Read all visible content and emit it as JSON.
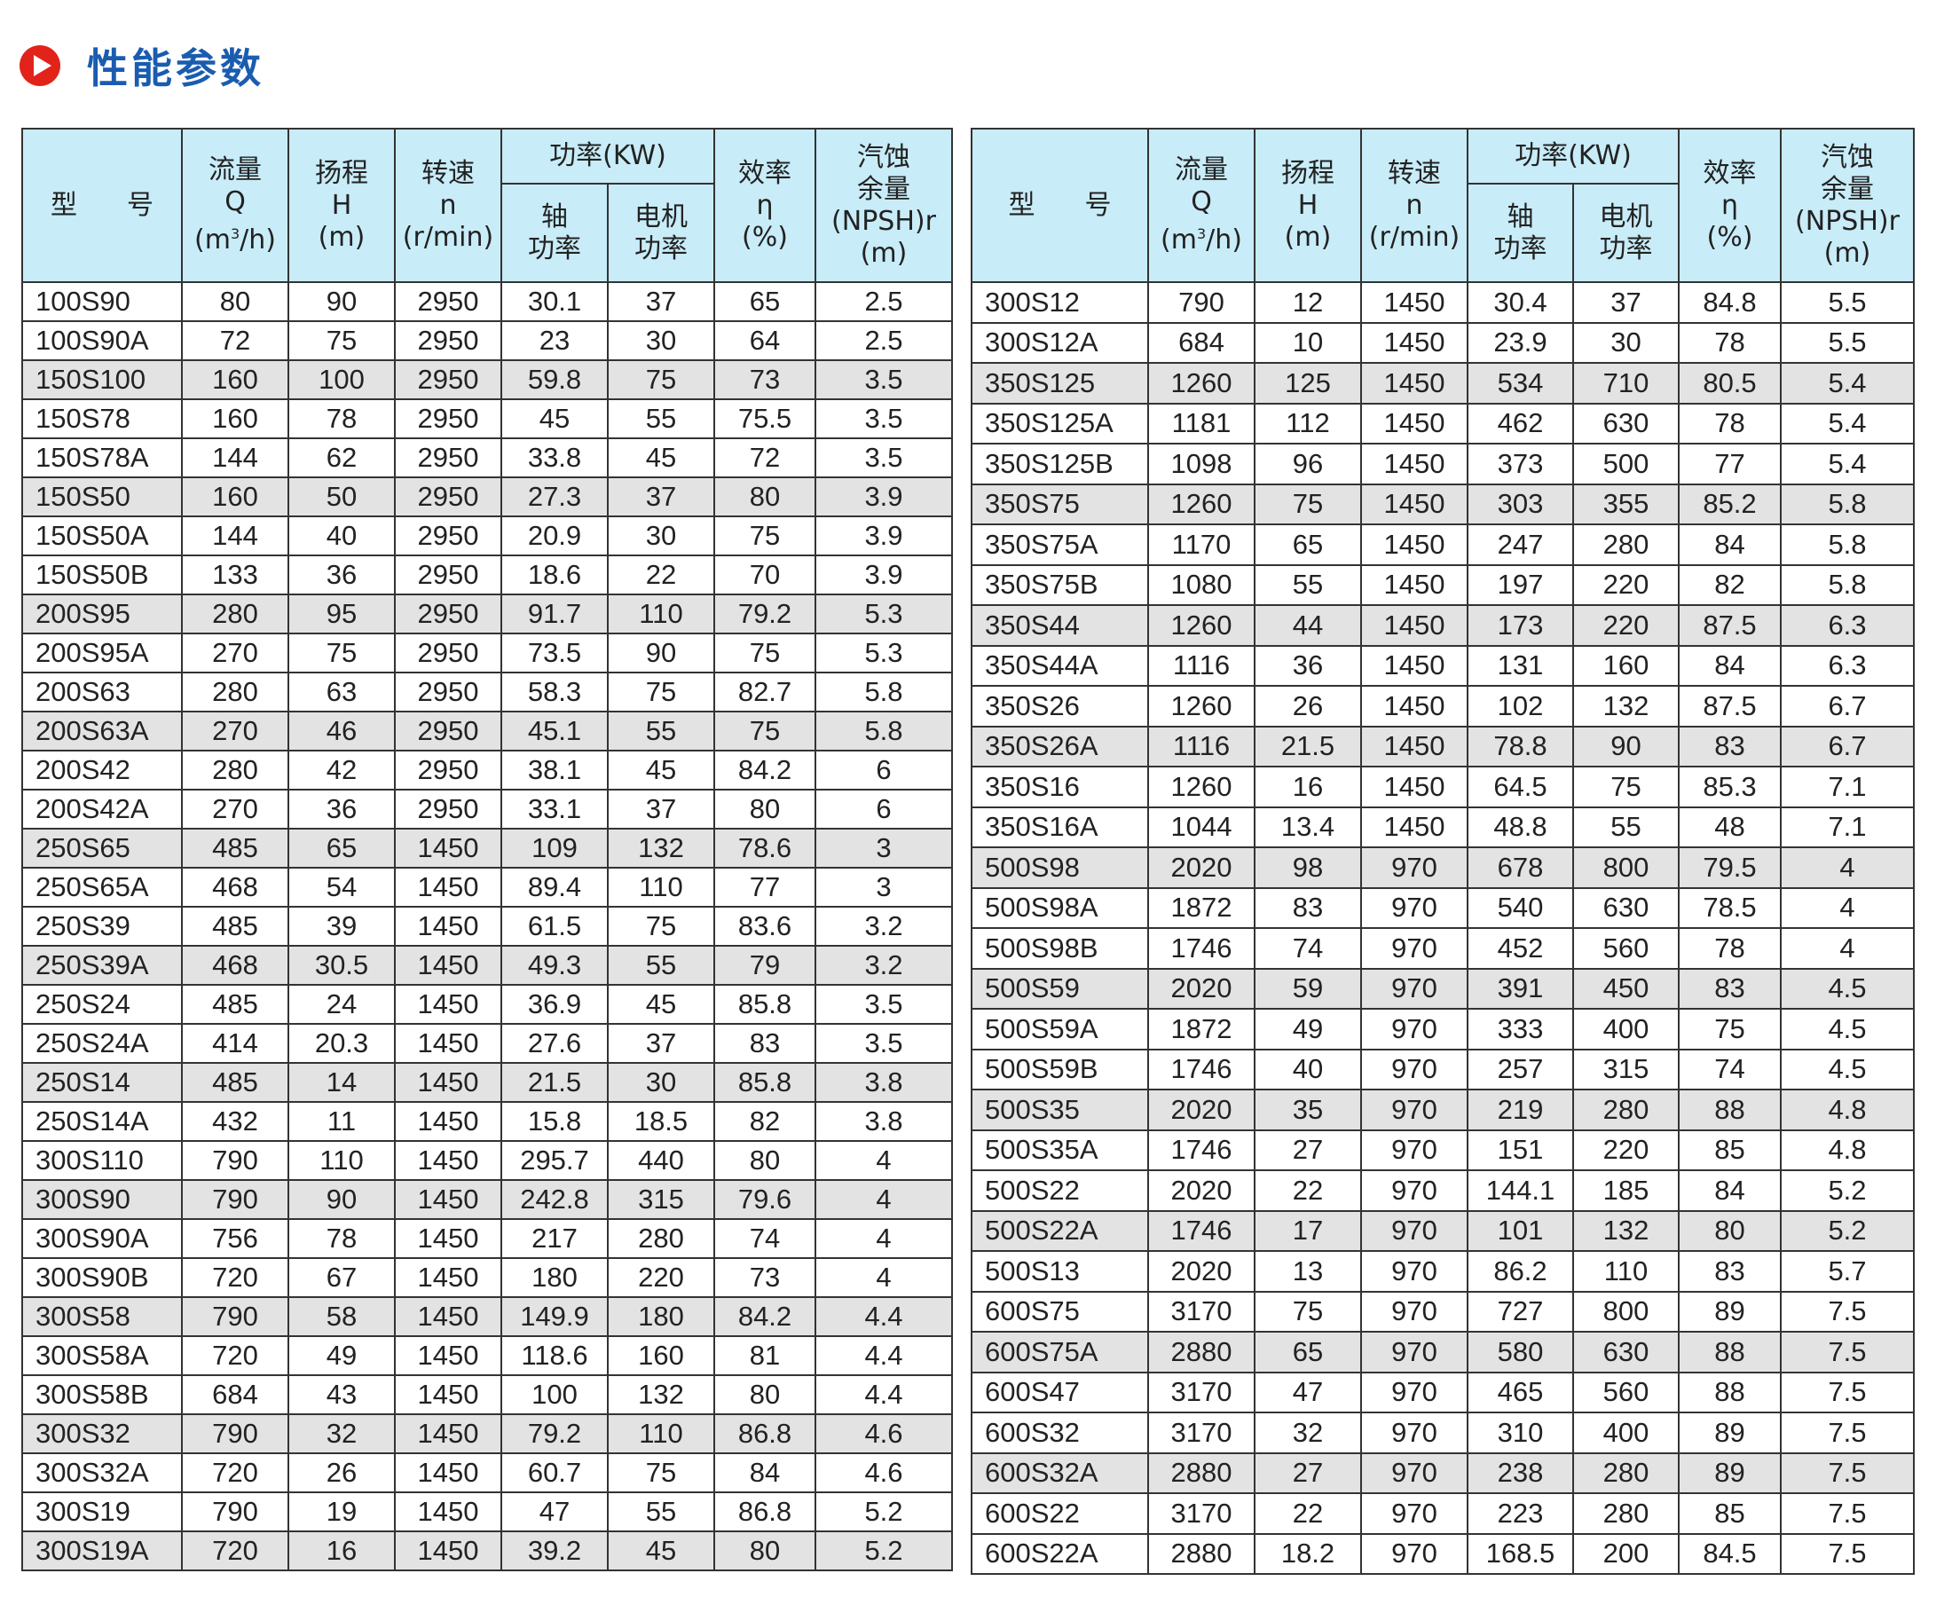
{
  "page": {
    "title": "性能参数",
    "title_icon": "play-circle-icon",
    "accent_color": "#e2231a",
    "title_color": "#1a5cb0",
    "header_bg": "#c8ecf8",
    "shade_bg": "#e3e3e3"
  },
  "headers": {
    "model_a": "型",
    "model_b": "号",
    "flow": [
      "流量",
      "Q",
      "(m",
      "3",
      "/h)"
    ],
    "head": [
      "扬程",
      "H",
      "(m)"
    ],
    "speed": [
      "转速",
      "n",
      "(r/min)"
    ],
    "power": "功率(KW)",
    "shaft_power": [
      "轴",
      "功率"
    ],
    "motor_power": [
      "电机",
      "功率"
    ],
    "efficiency": [
      "效率",
      "η",
      "(%)"
    ],
    "npsh": [
      "汽蚀",
      "余量",
      "(NPSH)r",
      "(m)"
    ]
  },
  "left_rows": [
    [
      "100S90",
      "80",
      "90",
      "2950",
      "30.1",
      "37",
      "65",
      "2.5"
    ],
    [
      "100S90A",
      "72",
      "75",
      "2950",
      "23",
      "30",
      "64",
      "2.5"
    ],
    [
      "150S100",
      "160",
      "100",
      "2950",
      "59.8",
      "75",
      "73",
      "3.5"
    ],
    [
      "150S78",
      "160",
      "78",
      "2950",
      "45",
      "55",
      "75.5",
      "3.5"
    ],
    [
      "150S78A",
      "144",
      "62",
      "2950",
      "33.8",
      "45",
      "72",
      "3.5"
    ],
    [
      "150S50",
      "160",
      "50",
      "2950",
      "27.3",
      "37",
      "80",
      "3.9"
    ],
    [
      "150S50A",
      "144",
      "40",
      "2950",
      "20.9",
      "30",
      "75",
      "3.9"
    ],
    [
      "150S50B",
      "133",
      "36",
      "2950",
      "18.6",
      "22",
      "70",
      "3.9"
    ],
    [
      "200S95",
      "280",
      "95",
      "2950",
      "91.7",
      "110",
      "79.2",
      "5.3"
    ],
    [
      "200S95A",
      "270",
      "75",
      "2950",
      "73.5",
      "90",
      "75",
      "5.3"
    ],
    [
      "200S63",
      "280",
      "63",
      "2950",
      "58.3",
      "75",
      "82.7",
      "5.8"
    ],
    [
      "200S63A",
      "270",
      "46",
      "2950",
      "45.1",
      "55",
      "75",
      "5.8"
    ],
    [
      "200S42",
      "280",
      "42",
      "2950",
      "38.1",
      "45",
      "84.2",
      "6"
    ],
    [
      "200S42A",
      "270",
      "36",
      "2950",
      "33.1",
      "37",
      "80",
      "6"
    ],
    [
      "250S65",
      "485",
      "65",
      "1450",
      "109",
      "132",
      "78.6",
      "3"
    ],
    [
      "250S65A",
      "468",
      "54",
      "1450",
      "89.4",
      "110",
      "77",
      "3"
    ],
    [
      "250S39",
      "485",
      "39",
      "1450",
      "61.5",
      "75",
      "83.6",
      "3.2"
    ],
    [
      "250S39A",
      "468",
      "30.5",
      "1450",
      "49.3",
      "55",
      "79",
      "3.2"
    ],
    [
      "250S24",
      "485",
      "24",
      "1450",
      "36.9",
      "45",
      "85.8",
      "3.5"
    ],
    [
      "250S24A",
      "414",
      "20.3",
      "1450",
      "27.6",
      "37",
      "83",
      "3.5"
    ],
    [
      "250S14",
      "485",
      "14",
      "1450",
      "21.5",
      "30",
      "85.8",
      "3.8"
    ],
    [
      "250S14A",
      "432",
      "11",
      "1450",
      "15.8",
      "18.5",
      "82",
      "3.8"
    ],
    [
      "300S110",
      "790",
      "110",
      "1450",
      "295.7",
      "440",
      "80",
      "4"
    ],
    [
      "300S90",
      "790",
      "90",
      "1450",
      "242.8",
      "315",
      "79.6",
      "4"
    ],
    [
      "300S90A",
      "756",
      "78",
      "1450",
      "217",
      "280",
      "74",
      "4"
    ],
    [
      "300S90B",
      "720",
      "67",
      "1450",
      "180",
      "220",
      "73",
      "4"
    ],
    [
      "300S58",
      "790",
      "58",
      "1450",
      "149.9",
      "180",
      "84.2",
      "4.4"
    ],
    [
      "300S58A",
      "720",
      "49",
      "1450",
      "118.6",
      "160",
      "81",
      "4.4"
    ],
    [
      "300S58B",
      "684",
      "43",
      "1450",
      "100",
      "132",
      "80",
      "4.4"
    ],
    [
      "300S32",
      "790",
      "32",
      "1450",
      "79.2",
      "110",
      "86.8",
      "4.6"
    ],
    [
      "300S32A",
      "720",
      "26",
      "1450",
      "60.7",
      "75",
      "84",
      "4.6"
    ],
    [
      "300S19",
      "790",
      "19",
      "1450",
      "47",
      "55",
      "86.8",
      "5.2"
    ],
    [
      "300S19A",
      "720",
      "16",
      "1450",
      "39.2",
      "45",
      "80",
      "5.2"
    ]
  ],
  "right_rows": [
    [
      "300S12",
      "790",
      "12",
      "1450",
      "30.4",
      "37",
      "84.8",
      "5.5"
    ],
    [
      "300S12A",
      "684",
      "10",
      "1450",
      "23.9",
      "30",
      "78",
      "5.5"
    ],
    [
      "350S125",
      "1260",
      "125",
      "1450",
      "534",
      "710",
      "80.5",
      "5.4"
    ],
    [
      "350S125A",
      "1181",
      "112",
      "1450",
      "462",
      "630",
      "78",
      "5.4"
    ],
    [
      "350S125B",
      "1098",
      "96",
      "1450",
      "373",
      "500",
      "77",
      "5.4"
    ],
    [
      "350S75",
      "1260",
      "75",
      "1450",
      "303",
      "355",
      "85.2",
      "5.8"
    ],
    [
      "350S75A",
      "1170",
      "65",
      "1450",
      "247",
      "280",
      "84",
      "5.8"
    ],
    [
      "350S75B",
      "1080",
      "55",
      "1450",
      "197",
      "220",
      "82",
      "5.8"
    ],
    [
      "350S44",
      "1260",
      "44",
      "1450",
      "173",
      "220",
      "87.5",
      "6.3"
    ],
    [
      "350S44A",
      "1116",
      "36",
      "1450",
      "131",
      "160",
      "84",
      "6.3"
    ],
    [
      "350S26",
      "1260",
      "26",
      "1450",
      "102",
      "132",
      "87.5",
      "6.7"
    ],
    [
      "350S26A",
      "1116",
      "21.5",
      "1450",
      "78.8",
      "90",
      "83",
      "6.7"
    ],
    [
      "350S16",
      "1260",
      "16",
      "1450",
      "64.5",
      "75",
      "85.3",
      "7.1"
    ],
    [
      "350S16A",
      "1044",
      "13.4",
      "1450",
      "48.8",
      "55",
      "48",
      "7.1"
    ],
    [
      "500S98",
      "2020",
      "98",
      "970",
      "678",
      "800",
      "79.5",
      "4"
    ],
    [
      "500S98A",
      "1872",
      "83",
      "970",
      "540",
      "630",
      "78.5",
      "4"
    ],
    [
      "500S98B",
      "1746",
      "74",
      "970",
      "452",
      "560",
      "78",
      "4"
    ],
    [
      "500S59",
      "2020",
      "59",
      "970",
      "391",
      "450",
      "83",
      "4.5"
    ],
    [
      "500S59A",
      "1872",
      "49",
      "970",
      "333",
      "400",
      "75",
      "4.5"
    ],
    [
      "500S59B",
      "1746",
      "40",
      "970",
      "257",
      "315",
      "74",
      "4.5"
    ],
    [
      "500S35",
      "2020",
      "35",
      "970",
      "219",
      "280",
      "88",
      "4.8"
    ],
    [
      "500S35A",
      "1746",
      "27",
      "970",
      "151",
      "220",
      "85",
      "4.8"
    ],
    [
      "500S22",
      "2020",
      "22",
      "970",
      "144.1",
      "185",
      "84",
      "5.2"
    ],
    [
      "500S22A",
      "1746",
      "17",
      "970",
      "101",
      "132",
      "80",
      "5.2"
    ],
    [
      "500S13",
      "2020",
      "13",
      "970",
      "86.2",
      "110",
      "83",
      "5.7"
    ],
    [
      "600S75",
      "3170",
      "75",
      "970",
      "727",
      "800",
      "89",
      "7.5"
    ],
    [
      "600S75A",
      "2880",
      "65",
      "970",
      "580",
      "630",
      "88",
      "7.5"
    ],
    [
      "600S47",
      "3170",
      "47",
      "970",
      "465",
      "560",
      "88",
      "7.5"
    ],
    [
      "600S32",
      "3170",
      "32",
      "970",
      "310",
      "400",
      "89",
      "7.5"
    ],
    [
      "600S32A",
      "2880",
      "27",
      "970",
      "238",
      "280",
      "89",
      "7.5"
    ],
    [
      "600S22",
      "3170",
      "22",
      "970",
      "223",
      "280",
      "85",
      "7.5"
    ],
    [
      "600S22A",
      "2880",
      "18.2",
      "970",
      "168.5",
      "200",
      "84.5",
      "7.5"
    ]
  ]
}
